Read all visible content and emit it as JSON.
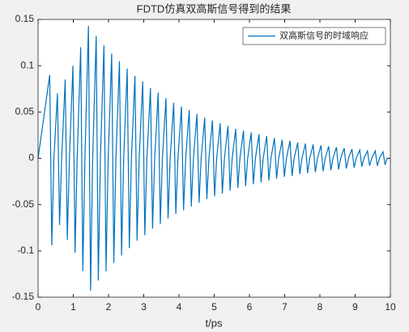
{
  "chart_data": {
    "type": "line",
    "title": "FDTD仿真双高斯信号得到的结果",
    "x_label": "t/ps",
    "legend_position": "upper right",
    "x": [
      0,
      0.33,
      0.39,
      0.45,
      0.55,
      0.61,
      0.67,
      0.77,
      0.83,
      0.89,
      0.99,
      1.05,
      1.11,
      1.21,
      1.27,
      1.33,
      1.43,
      1.49,
      1.55,
      1.65,
      1.71,
      1.77,
      1.87,
      1.93,
      1.99,
      2.09,
      2.15,
      2.21,
      2.31,
      2.37,
      2.43,
      2.53,
      2.59,
      2.65,
      2.75,
      2.81,
      2.87,
      2.97,
      3.03,
      3.09,
      3.19,
      3.25,
      3.31,
      3.41,
      3.47,
      3.53,
      3.63,
      3.69,
      3.75,
      3.85,
      3.91,
      3.97,
      4.07,
      4.13,
      4.19,
      4.29,
      4.35,
      4.41,
      4.51,
      4.57,
      4.63,
      4.73,
      4.79,
      4.85,
      4.95,
      5.01,
      5.07,
      5.17,
      5.23,
      5.29,
      5.39,
      5.45,
      5.51,
      5.61,
      5.67,
      5.73,
      5.83,
      5.89,
      5.95,
      6.05,
      6.11,
      6.17,
      6.27,
      6.33,
      6.39,
      6.49,
      6.55,
      6.61,
      6.71,
      6.77,
      6.83,
      6.93,
      6.99,
      7.05,
      7.15,
      7.21,
      7.27,
      7.37,
      7.43,
      7.49,
      7.59,
      7.65,
      7.71,
      7.81,
      7.87,
      7.93,
      8.03,
      8.09,
      8.15,
      8.25,
      8.31,
      8.37,
      8.47,
      8.53,
      8.59,
      8.69,
      8.75,
      8.81,
      8.91,
      8.97,
      9.03,
      9.13,
      9.19,
      9.25,
      9.35,
      9.41,
      9.47,
      9.57,
      9.63,
      9.69,
      9.79,
      9.85,
      9.91,
      10
    ],
    "series": [
      {
        "name": "双高斯信号的时域响应",
        "color": "#0072bd",
        "values": [
          0,
          0.09,
          -0.094,
          0,
          0.07,
          -0.072,
          0,
          0.085,
          -0.088,
          0,
          0.1,
          -0.102,
          0,
          0.12,
          -0.122,
          0,
          0.143,
          -0.143,
          0,
          0.132,
          -0.132,
          0,
          0.122,
          -0.122,
          0,
          0.113,
          -0.113,
          0,
          0.105,
          -0.105,
          0,
          0.097,
          -0.097,
          0,
          0.089,
          -0.089,
          0,
          0.083,
          -0.083,
          0,
          0.076,
          -0.076,
          0,
          0.071,
          -0.071,
          0,
          0.065,
          -0.065,
          0,
          0.06,
          -0.06,
          0,
          0.056,
          -0.056,
          0,
          0.052,
          -0.052,
          0,
          0.048,
          -0.048,
          0,
          0.044,
          -0.044,
          0,
          0.041,
          -0.041,
          0,
          0.038,
          -0.038,
          0,
          0.035,
          -0.035,
          0,
          0.032,
          -0.032,
          0,
          0.03,
          -0.03,
          0,
          0.028,
          -0.028,
          0,
          0.026,
          -0.026,
          0,
          0.024,
          -0.024,
          0,
          0.022,
          -0.022,
          0,
          0.02,
          -0.02,
          0,
          0.019,
          -0.019,
          0,
          0.017,
          -0.017,
          0,
          0.016,
          -0.016,
          0,
          0.015,
          -0.015,
          0,
          0.014,
          -0.014,
          0,
          0.013,
          -0.013,
          0,
          0.012,
          -0.012,
          0,
          0.011,
          -0.011,
          0,
          0.01,
          -0.01,
          0,
          0.009,
          -0.009,
          0,
          0.008,
          -0.008,
          0,
          0.008,
          -0.008,
          0,
          0.007,
          -0.007,
          0,
          0
        ]
      }
    ],
    "xlim": [
      0,
      10
    ],
    "xticks": [
      0,
      1,
      2,
      3,
      4,
      5,
      6,
      7,
      8,
      9,
      10
    ],
    "ylim": [
      -0.15,
      0.15
    ],
    "yticks": [
      -0.15,
      -0.1,
      -0.05,
      0,
      0.05,
      0.1,
      0.15
    ]
  }
}
